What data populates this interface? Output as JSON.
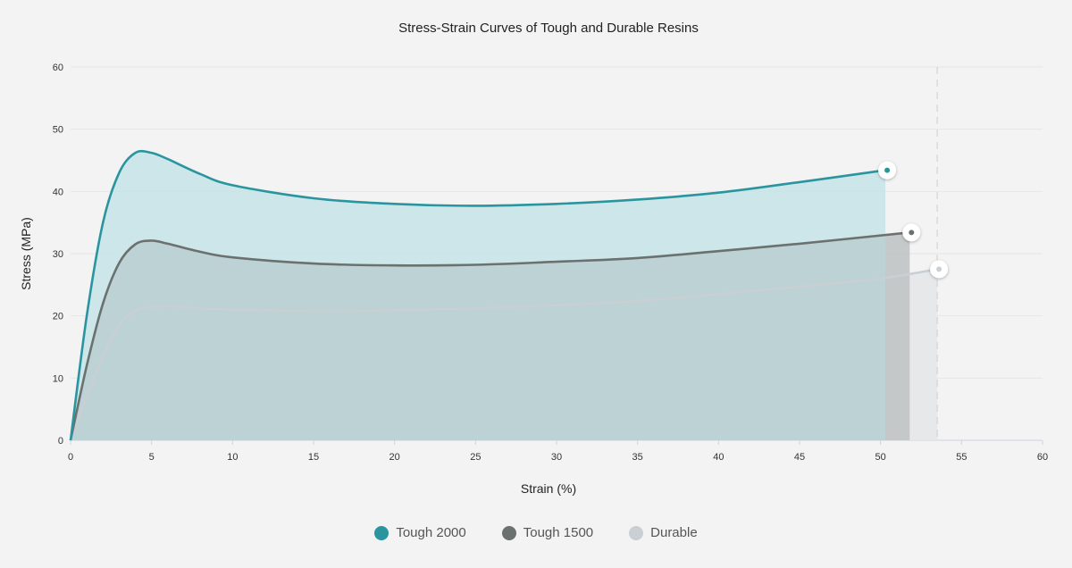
{
  "chart_data": {
    "type": "area",
    "title": "Stress-Strain Curves of Tough and Durable Resins",
    "xlabel": "Strain (%)",
    "ylabel": "Stress (MPa)",
    "xlim": [
      0,
      60
    ],
    "ylim": [
      0,
      60
    ],
    "x_ticks": [
      0,
      5,
      10,
      15,
      20,
      25,
      30,
      35,
      40,
      45,
      50,
      55,
      60
    ],
    "y_ticks": [
      0,
      10,
      20,
      30,
      40,
      50,
      60
    ],
    "grid": true,
    "legend_position": "bottom",
    "series": [
      {
        "name": "Tough 2000",
        "color": "#2a959f",
        "fill": "#c4e3e6",
        "points": [
          [
            0,
            0
          ],
          [
            1,
            20
          ],
          [
            2,
            35
          ],
          [
            3,
            43
          ],
          [
            4,
            46.2
          ],
          [
            5,
            46.2
          ],
          [
            6,
            45.2
          ],
          [
            8,
            42.8
          ],
          [
            10,
            41
          ],
          [
            15,
            38.9
          ],
          [
            20,
            38
          ],
          [
            25,
            37.7
          ],
          [
            30,
            38
          ],
          [
            35,
            38.7
          ],
          [
            40,
            39.8
          ],
          [
            45,
            41.5
          ],
          [
            50.3,
            43.4
          ]
        ]
      },
      {
        "name": "Tough 1500",
        "color": "#6b716f",
        "fill": "#cfd0d0",
        "points": [
          [
            0,
            0
          ],
          [
            1,
            12
          ],
          [
            2,
            22
          ],
          [
            3,
            28.5
          ],
          [
            4,
            31.5
          ],
          [
            5,
            32.1
          ],
          [
            6,
            31.6
          ],
          [
            8,
            30.3
          ],
          [
            10,
            29.4
          ],
          [
            15,
            28.4
          ],
          [
            20,
            28.1
          ],
          [
            25,
            28.2
          ],
          [
            30,
            28.7
          ],
          [
            35,
            29.3
          ],
          [
            40,
            30.4
          ],
          [
            45,
            31.6
          ],
          [
            51.8,
            33.4
          ]
        ]
      },
      {
        "name": "Durable",
        "color": "#c9cfd3",
        "fill": "#e5e7e8",
        "points": [
          [
            0,
            0
          ],
          [
            1,
            7
          ],
          [
            2,
            13.5
          ],
          [
            3,
            18.5
          ],
          [
            4,
            20.8
          ],
          [
            5,
            21.4
          ],
          [
            6,
            21.5
          ],
          [
            8,
            21.2
          ],
          [
            10,
            21
          ],
          [
            15,
            20.8
          ],
          [
            20,
            20.9
          ],
          [
            25,
            21.2
          ],
          [
            30,
            21.7
          ],
          [
            35,
            22.4
          ],
          [
            40,
            23.5
          ],
          [
            45,
            24.7
          ],
          [
            50,
            26
          ],
          [
            53.5,
            27.5
          ]
        ]
      }
    ],
    "reference_line_x": 53.5
  },
  "legend": {
    "items": [
      {
        "label": "Tough 2000",
        "color": "#2a959f"
      },
      {
        "label": "Tough 1500",
        "color": "#6b716f"
      },
      {
        "label": "Durable",
        "color": "#c9cfd3"
      }
    ]
  }
}
